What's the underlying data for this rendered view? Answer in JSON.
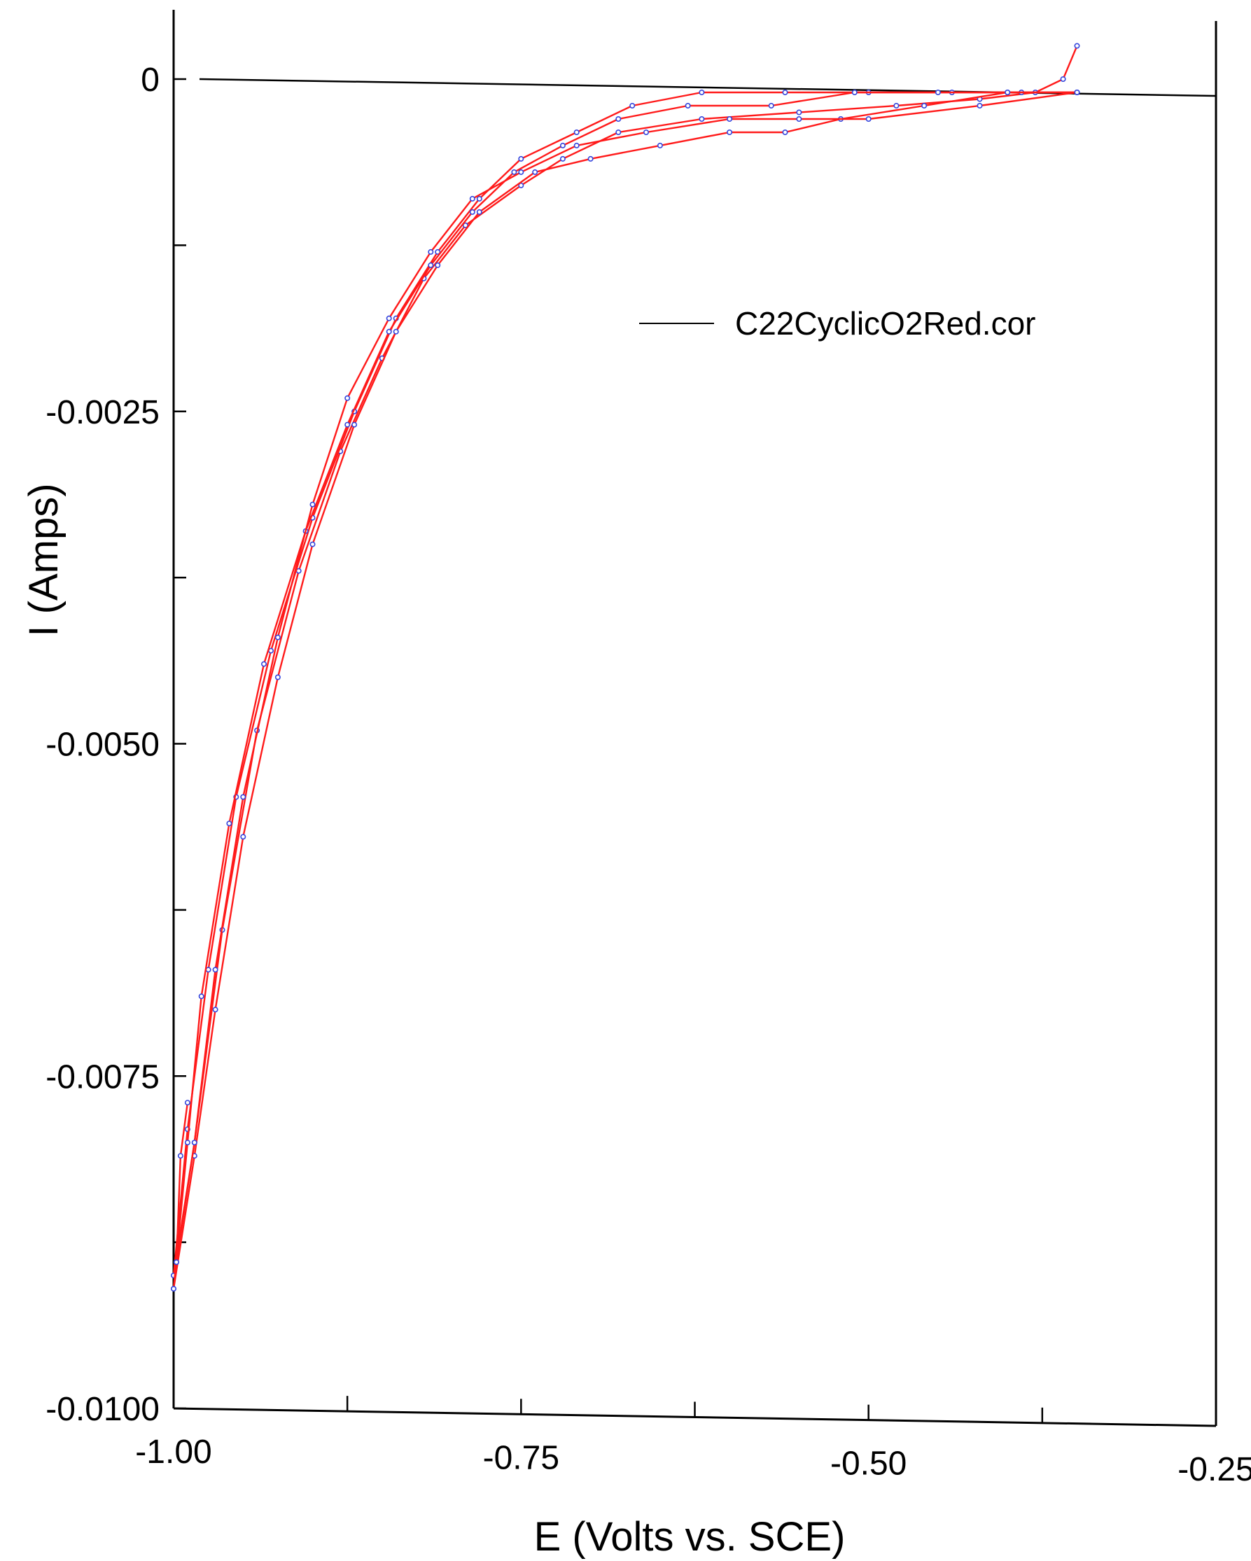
{
  "chart_data": {
    "type": "line",
    "title": "",
    "xlabel": "E (Volts vs. SCE)",
    "ylabel": "I (Amps)",
    "xlim": [
      -1.0,
      -0.25
    ],
    "ylim": [
      -0.01,
      0.0
    ],
    "x_ticks": [
      -1.0,
      -0.875,
      -0.75,
      -0.625,
      -0.5,
      -0.375,
      -0.25
    ],
    "x_tick_labels": [
      "-1.00",
      "",
      "-0.75",
      "",
      "-0.50",
      "",
      "-0.25"
    ],
    "y_ticks": [
      0,
      -0.00125,
      -0.0025,
      -0.00375,
      -0.005,
      -0.00625,
      -0.0075,
      -0.00875,
      -0.01
    ],
    "y_tick_labels": [
      "0",
      "",
      "-0.0025",
      "",
      "-0.0050",
      "",
      "-0.0075",
      "",
      "-0.0100"
    ],
    "zero_line": true,
    "grid": false,
    "legend_position": "top-right",
    "line_color": "#ff1a1a",
    "marker_color": "#3344dd",
    "series": [
      {
        "name": "C22CyclicO2Red.cor",
        "values": [
          [
            -0.35,
            0.00025
          ],
          [
            -0.36,
            0.0
          ],
          [
            -0.38,
            -0.0001
          ],
          [
            -0.42,
            -0.00015
          ],
          [
            -0.48,
            -0.0002
          ],
          [
            -0.55,
            -0.00025
          ],
          [
            -0.62,
            -0.0003
          ],
          [
            -0.68,
            -0.0004
          ],
          [
            -0.72,
            -0.0006
          ],
          [
            -0.75,
            -0.0008
          ],
          [
            -0.79,
            -0.0011
          ],
          [
            -0.82,
            -0.0015
          ],
          [
            -0.85,
            -0.0021
          ],
          [
            -0.88,
            -0.0028
          ],
          [
            -0.91,
            -0.0037
          ],
          [
            -0.94,
            -0.0049
          ],
          [
            -0.965,
            -0.0064
          ],
          [
            -0.985,
            -0.008
          ],
          [
            -1.0,
            -0.009
          ]
        ]
      },
      {
        "name": "",
        "values": [
          [
            -1.0,
            -0.009
          ],
          [
            -0.99,
            -0.0079
          ],
          [
            -0.975,
            -0.0067
          ],
          [
            -0.955,
            -0.0054
          ],
          [
            -0.93,
            -0.0043
          ],
          [
            -0.9,
            -0.0033
          ],
          [
            -0.87,
            -0.0025
          ],
          [
            -0.84,
            -0.0018
          ],
          [
            -0.81,
            -0.0013
          ],
          [
            -0.78,
            -0.0009
          ],
          [
            -0.75,
            -0.0006
          ],
          [
            -0.71,
            -0.0004
          ],
          [
            -0.67,
            -0.0002
          ],
          [
            -0.62,
            -0.0001
          ],
          [
            -0.56,
            -0.0001
          ],
          [
            -0.5,
            -0.0001
          ],
          [
            -0.44,
            -0.0001
          ],
          [
            -0.39,
            -0.0001
          ],
          [
            -0.35,
            -0.0001
          ]
        ]
      },
      {
        "name": "",
        "values": [
          [
            -0.35,
            -0.0001
          ],
          [
            -0.4,
            -0.0001
          ],
          [
            -0.46,
            -0.0002
          ],
          [
            -0.52,
            -0.0003
          ],
          [
            -0.56,
            -0.0004
          ],
          [
            -0.6,
            -0.0004
          ],
          [
            -0.65,
            -0.0005
          ],
          [
            -0.7,
            -0.0006
          ],
          [
            -0.74,
            -0.0007
          ],
          [
            -0.78,
            -0.001
          ],
          [
            -0.81,
            -0.0014
          ],
          [
            -0.84,
            -0.0019
          ],
          [
            -0.87,
            -0.0026
          ],
          [
            -0.9,
            -0.0035
          ],
          [
            -0.925,
            -0.0045
          ],
          [
            -0.95,
            -0.0057
          ],
          [
            -0.97,
            -0.007
          ],
          [
            -0.985,
            -0.0081
          ],
          [
            -1.0,
            -0.0091
          ]
        ]
      },
      {
        "name": "",
        "values": [
          [
            -1.0,
            -0.0091
          ],
          [
            -0.99,
            -0.008
          ],
          [
            -0.98,
            -0.0069
          ],
          [
            -0.96,
            -0.0056
          ],
          [
            -0.935,
            -0.0044
          ],
          [
            -0.905,
            -0.0034
          ],
          [
            -0.875,
            -0.0026
          ],
          [
            -0.845,
            -0.0019
          ],
          [
            -0.815,
            -0.0014
          ],
          [
            -0.785,
            -0.001
          ],
          [
            -0.755,
            -0.0007
          ],
          [
            -0.72,
            -0.0005
          ],
          [
            -0.68,
            -0.0003
          ],
          [
            -0.63,
            -0.0002
          ],
          [
            -0.57,
            -0.0002
          ],
          [
            -0.51,
            -0.0001
          ],
          [
            -0.45,
            -0.0001
          ],
          [
            -0.4,
            -0.0001
          ],
          [
            -0.35,
            -0.0001
          ]
        ]
      },
      {
        "name": "",
        "values": [
          [
            -0.35,
            -0.0001
          ],
          [
            -0.42,
            -0.0002
          ],
          [
            -0.5,
            -0.0003
          ],
          [
            -0.55,
            -0.0003
          ],
          [
            -0.6,
            -0.0003
          ],
          [
            -0.66,
            -0.0004
          ],
          [
            -0.71,
            -0.0005
          ],
          [
            -0.75,
            -0.0007
          ],
          [
            -0.785,
            -0.0009
          ],
          [
            -0.815,
            -0.0013
          ],
          [
            -0.845,
            -0.0018
          ],
          [
            -0.875,
            -0.0024
          ],
          [
            -0.9,
            -0.0032
          ],
          [
            -0.925,
            -0.0042
          ],
          [
            -0.95,
            -0.0054
          ],
          [
            -0.97,
            -0.0067
          ],
          [
            -0.985,
            -0.008
          ],
          [
            -0.998,
            -0.0089
          ]
        ]
      },
      {
        "name": "",
        "values": [
          [
            -0.998,
            -0.0089
          ],
          [
            -0.995,
            -0.0081
          ],
          [
            -0.99,
            -0.0077
          ]
        ]
      }
    ]
  }
}
